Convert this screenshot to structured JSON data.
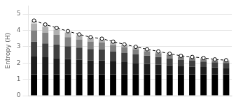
{
  "chart_data": {
    "type": "bar",
    "ylabel": "Entropy (H)",
    "categories": [
      null,
      null,
      null,
      null,
      null,
      null,
      null,
      null,
      null,
      null,
      null,
      null,
      null,
      null,
      null,
      null,
      null,
      null
    ],
    "series": [
      {
        "color": "#000000",
        "values": [
          1.3,
          1.3,
          1.3,
          1.3,
          1.3,
          1.3,
          1.3,
          1.3,
          1.3,
          1.3,
          1.3,
          1.3,
          1.3,
          1.3,
          1.3,
          1.3,
          1.3,
          1.3
        ]
      },
      {
        "color": "#1c1c1c",
        "values": [
          1.1,
          1.05,
          1.0,
          0.95,
          0.9,
          0.85,
          0.85,
          0.8,
          0.75,
          0.7,
          0.65,
          0.6,
          0.55,
          0.5,
          0.48,
          0.45,
          0.42,
          0.4
        ]
      },
      {
        "color": "#404040",
        "values": [
          0.9,
          0.85,
          0.82,
          0.78,
          0.74,
          0.7,
          0.68,
          0.62,
          0.58,
          0.54,
          0.5,
          0.46,
          0.42,
          0.38,
          0.36,
          0.34,
          0.32,
          0.3
        ]
      },
      {
        "color": "#808080",
        "values": [
          0.7,
          0.65,
          0.6,
          0.55,
          0.5,
          0.46,
          0.42,
          0.38,
          0.34,
          0.3,
          0.27,
          0.24,
          0.21,
          0.18,
          0.16,
          0.15,
          0.13,
          0.12
        ]
      },
      {
        "color": "#b0b0b0",
        "values": [
          0.4,
          0.35,
          0.3,
          0.27,
          0.23,
          0.2,
          0.18,
          0.16,
          0.13,
          0.11,
          0.09,
          0.08,
          0.07,
          0.06,
          0.05,
          0.05,
          0.04,
          0.04
        ]
      },
      {
        "color": "#d8d8d8",
        "values": [
          0.2,
          0.16,
          0.13,
          0.1,
          0.08,
          0.07,
          0.06,
          0.05,
          0.04,
          0.04,
          0.03,
          0.03,
          0.02,
          0.02,
          0.02,
          0.02,
          0.01,
          0.01
        ]
      },
      {
        "type": "line",
        "color": "#000000",
        "marker": "circle",
        "line_style": "dashed",
        "values": [
          4.6,
          4.36,
          4.15,
          3.95,
          3.75,
          3.58,
          3.49,
          3.31,
          3.14,
          2.99,
          2.84,
          2.71,
          2.57,
          2.44,
          2.37,
          2.31,
          2.22,
          2.17
        ]
      }
    ],
    "ylim": [
      0,
      5.5
    ],
    "yticks": [
      0,
      1,
      2,
      3,
      4,
      5
    ],
    "stacked": true,
    "grid": true,
    "tick_labels": "y"
  }
}
